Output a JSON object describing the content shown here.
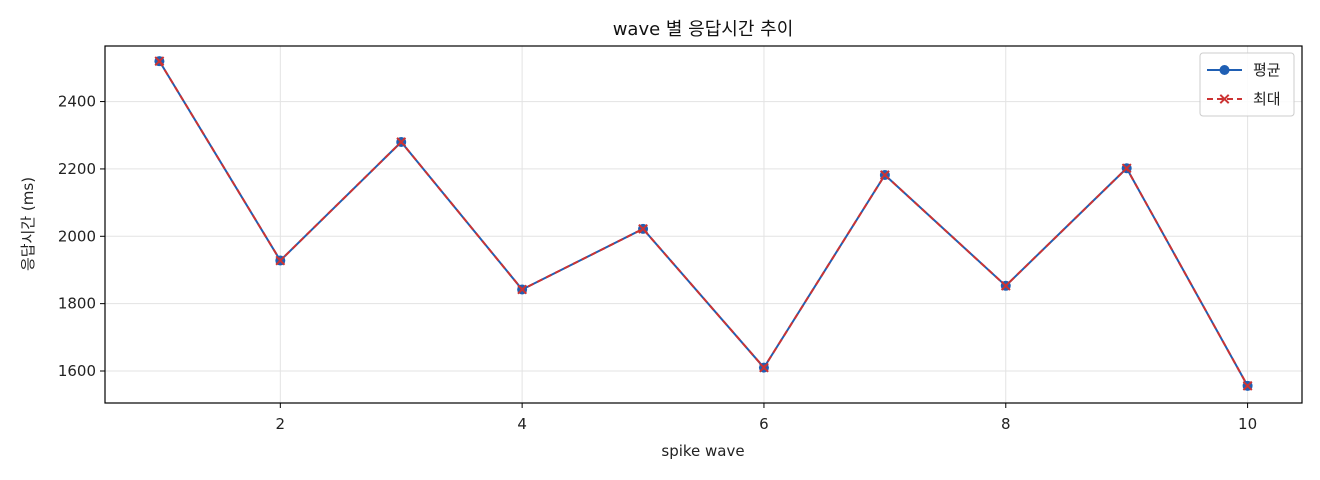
{
  "chart_data": {
    "type": "line",
    "title": "wave 별 응답시간 추이",
    "xlabel": "spike wave",
    "ylabel": "응답시간 (ms)",
    "x": [
      1,
      2,
      3,
      4,
      5,
      6,
      7,
      8,
      9,
      10
    ],
    "xlim": [
      0.55,
      10.45
    ],
    "ylim": [
      1505,
      2565
    ],
    "xticks": [
      2,
      4,
      6,
      8,
      10
    ],
    "yticks": [
      1600,
      1800,
      2000,
      2200,
      2400
    ],
    "grid": true,
    "legend_position": "top-right",
    "series": [
      {
        "name": "평균",
        "color": "#1f5fb4",
        "line_style": "solid",
        "marker": "circle",
        "values": [
          2520,
          1928,
          2280,
          1842,
          2022,
          1610,
          2182,
          1853,
          2202,
          1556
        ]
      },
      {
        "name": "최대",
        "color": "#cc3333",
        "line_style": "dashed",
        "marker": "x",
        "values": [
          2520,
          1928,
          2280,
          1842,
          2022,
          1610,
          2182,
          1853,
          2202,
          1556
        ]
      }
    ]
  }
}
